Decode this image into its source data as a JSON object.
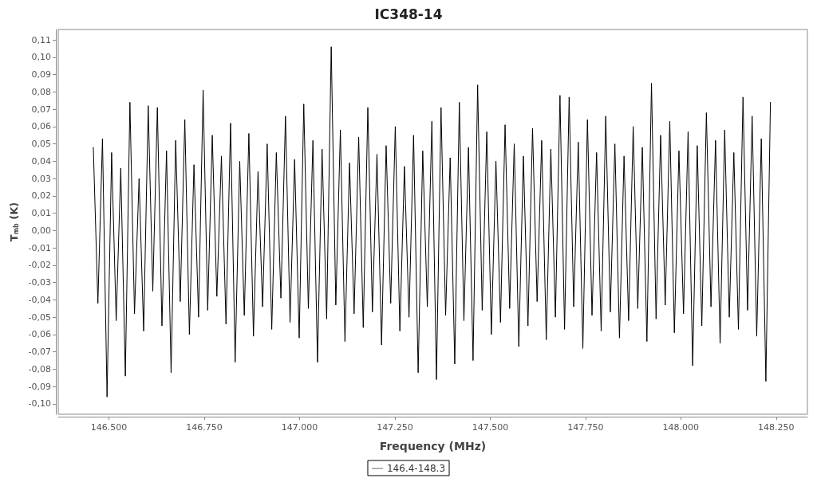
{
  "chart_data": {
    "type": "line",
    "title": "IC348-14",
    "xlabel": "Frequency (MHz)",
    "ylabel": "T$_{mb}$ (K)",
    "x": [
      146459,
      146471,
      146483,
      146495,
      146507,
      146519,
      146531,
      146543,
      146555,
      146567,
      146579,
      146591,
      146603,
      146615,
      146627,
      146639,
      146651,
      146663,
      146675,
      146687,
      146699,
      146711,
      146723,
      146735,
      146747,
      146759,
      146771,
      146783,
      146795,
      146807,
      146819,
      146831,
      146843,
      146855,
      146867,
      146879,
      146891,
      146903,
      146915,
      146927,
      146939,
      146951,
      146963,
      146975,
      146987,
      146999,
      147011,
      147023,
      147035,
      147047,
      147059,
      147071,
      147083,
      147095,
      147107,
      147119,
      147131,
      147143,
      147155,
      147167,
      147179,
      147191,
      147203,
      147215,
      147227,
      147239,
      147251,
      147263,
      147275,
      147287,
      147299,
      147311,
      147323,
      147335,
      147347,
      147359,
      147371,
      147383,
      147395,
      147407,
      147419,
      147431,
      147443,
      147455,
      147467,
      147479,
      147491,
      147503,
      147515,
      147527,
      147539,
      147551,
      147563,
      147575,
      147587,
      147599,
      147611,
      147623,
      147635,
      147647,
      147659,
      147671,
      147683,
      147695,
      147707,
      147719,
      147731,
      147743,
      147755,
      147767,
      147779,
      147791,
      147803,
      147815,
      147827,
      147839,
      147851,
      147863,
      147875,
      147887,
      147899,
      147911,
      147923,
      147935,
      147947,
      147959,
      147971,
      147983,
      147995,
      148007,
      148019,
      148031,
      148043,
      148055,
      148067,
      148079,
      148091,
      148103,
      148115,
      148127,
      148139,
      148151,
      148163,
      148175,
      148187,
      148199,
      148211,
      148223,
      148235
    ],
    "series": [
      {
        "name": "146.4-148.3",
        "color": "#000000",
        "values": [
          0.048,
          -0.042,
          0.053,
          -0.096,
          0.045,
          -0.052,
          0.036,
          -0.084,
          0.074,
          -0.048,
          0.03,
          -0.058,
          0.072,
          -0.035,
          0.071,
          -0.055,
          0.046,
          -0.082,
          0.052,
          -0.041,
          0.064,
          -0.06,
          0.038,
          -0.05,
          0.081,
          -0.046,
          0.055,
          -0.038,
          0.043,
          -0.054,
          0.062,
          -0.076,
          0.04,
          -0.049,
          0.056,
          -0.061,
          0.034,
          -0.044,
          0.05,
          -0.057,
          0.045,
          -0.039,
          0.066,
          -0.053,
          0.041,
          -0.062,
          0.073,
          -0.045,
          0.052,
          -0.076,
          0.047,
          -0.051,
          0.106,
          -0.043,
          0.058,
          -0.064,
          0.039,
          -0.048,
          0.054,
          -0.056,
          0.071,
          -0.047,
          0.044,
          -0.066,
          0.049,
          -0.042,
          0.06,
          -0.058,
          0.037,
          -0.05,
          0.055,
          -0.082,
          0.046,
          -0.044,
          0.063,
          -0.086,
          0.071,
          -0.049,
          0.042,
          -0.077,
          0.074,
          -0.052,
          0.048,
          -0.075,
          0.084,
          -0.046,
          0.057,
          -0.06,
          0.04,
          -0.053,
          0.061,
          -0.045,
          0.05,
          -0.067,
          0.043,
          -0.055,
          0.059,
          -0.041,
          0.052,
          -0.063,
          0.047,
          -0.05,
          0.078,
          -0.057,
          0.077,
          -0.044,
          0.051,
          -0.068,
          0.064,
          -0.049,
          0.045,
          -0.058,
          0.066,
          -0.047,
          0.05,
          -0.062,
          0.043,
          -0.052,
          0.06,
          -0.045,
          0.048,
          -0.064,
          0.085,
          -0.051,
          0.055,
          -0.043,
          0.063,
          -0.059,
          0.046,
          -0.048,
          0.057,
          -0.078,
          0.049,
          -0.055,
          0.068,
          -0.044,
          0.052,
          -0.065,
          0.058,
          -0.05,
          0.045,
          -0.057,
          0.077,
          -0.046,
          0.066,
          -0.061,
          0.053,
          -0.087,
          0.074
        ]
      }
    ],
    "xlim": [
      146367,
      148332
    ],
    "ylim": [
      -0.106,
      0.116
    ],
    "xticks": [
      {
        "value": 146500,
        "label": "146.500"
      },
      {
        "value": 146750,
        "label": "146.750"
      },
      {
        "value": 147000,
        "label": "147.000"
      },
      {
        "value": 147250,
        "label": "147.250"
      },
      {
        "value": 147500,
        "label": "147.500"
      },
      {
        "value": 147750,
        "label": "147.750"
      },
      {
        "value": 148000,
        "label": "148.000"
      },
      {
        "value": 148250,
        "label": "148.250"
      }
    ],
    "yticks": [
      {
        "value": -0.1,
        "label": "-0,10"
      },
      {
        "value": -0.09,
        "label": "-0,09"
      },
      {
        "value": -0.08,
        "label": "-0,08"
      },
      {
        "value": -0.07,
        "label": "-0,07"
      },
      {
        "value": -0.06,
        "label": "-0,06"
      },
      {
        "value": -0.05,
        "label": "-0,05"
      },
      {
        "value": -0.04,
        "label": "-0,04"
      },
      {
        "value": -0.03,
        "label": "-0,03"
      },
      {
        "value": -0.02,
        "label": "-0,02"
      },
      {
        "value": -0.01,
        "label": "-0,01"
      },
      {
        "value": 0,
        "label": "0,00"
      },
      {
        "value": 0.01,
        "label": "0,01"
      },
      {
        "value": 0.02,
        "label": "0,02"
      },
      {
        "value": 0.03,
        "label": "0,03"
      },
      {
        "value": 0.04,
        "label": "0,04"
      },
      {
        "value": 0.05,
        "label": "0,05"
      },
      {
        "value": 0.06,
        "label": "0,06"
      },
      {
        "value": 0.07,
        "label": "0,07"
      },
      {
        "value": 0.08,
        "label": "0,08"
      },
      {
        "value": 0.09,
        "label": "0,09"
      },
      {
        "value": 0.1,
        "label": "0,10"
      },
      {
        "value": 0.11,
        "label": "0,11"
      }
    ],
    "grid": false,
    "legend": "bottom",
    "marker": "none",
    "line_style": "solid"
  }
}
